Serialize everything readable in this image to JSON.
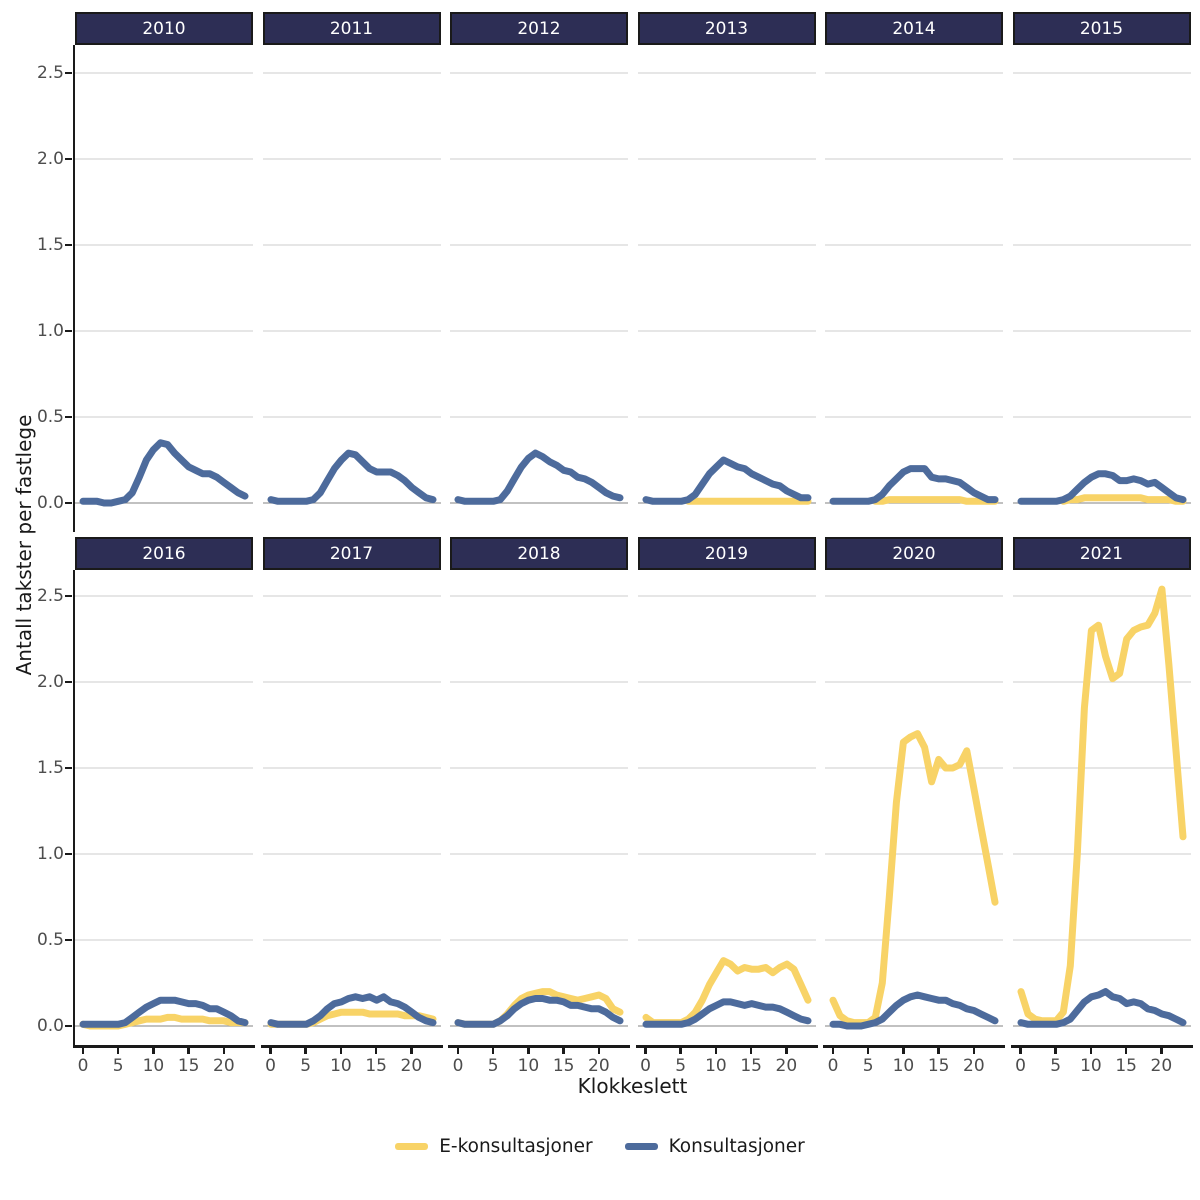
{
  "axes": {
    "y_title": "Antall takster per fastlege",
    "x_title": "Klokkeslett",
    "y_ticks": [
      "2.5",
      "2.0",
      "1.5",
      "1.0",
      "0.5",
      "0.0"
    ],
    "x_ticks": [
      "0",
      "5",
      "10",
      "15",
      "20"
    ],
    "x_tick_values": [
      0,
      5,
      10,
      15,
      20
    ]
  },
  "legend": {
    "items": [
      {
        "label": "E-konsultasjoner",
        "key": "e_konsultasjoner"
      },
      {
        "label": "Konsultasjoner",
        "key": "konsultasjoner"
      }
    ]
  },
  "colors": {
    "e_konsultasjoner": "#F8D367",
    "konsultasjoner": "#4D6B9C",
    "strip_bg": "#2D2E55",
    "strip_text": "#FFFFFF",
    "grid": "#D8D8D8",
    "grid_zero": "#9C9C9C",
    "axis_line": "#1A1A1A",
    "tick_text": "#4D4D4D"
  },
  "chart_data": {
    "type": "line",
    "x_label": "Klokkeslett",
    "y_label": "Antall takster per fastlege",
    "x": [
      0,
      1,
      2,
      3,
      4,
      5,
      6,
      7,
      8,
      9,
      10,
      11,
      12,
      13,
      14,
      15,
      16,
      17,
      18,
      19,
      20,
      21,
      22,
      23
    ],
    "ylim": [
      0,
      2.5
    ],
    "grid": "horizontal-only",
    "legend_position": "bottom",
    "facet_layout": {
      "rows": 2,
      "cols": 6
    },
    "facets": [
      {
        "year": "2010",
        "series": [
          {
            "name": "Konsultasjoner",
            "key": "konsultasjoner",
            "values": [
              0.01,
              0.01,
              0.01,
              0.0,
              0.0,
              0.01,
              0.02,
              0.06,
              0.15,
              0.25,
              0.31,
              0.35,
              0.34,
              0.29,
              0.25,
              0.21,
              0.19,
              0.17,
              0.17,
              0.15,
              0.12,
              0.09,
              0.06,
              0.04
            ]
          }
        ]
      },
      {
        "year": "2011",
        "series": [
          {
            "name": "Konsultasjoner",
            "key": "konsultasjoner",
            "values": [
              0.02,
              0.01,
              0.01,
              0.01,
              0.01,
              0.01,
              0.02,
              0.06,
              0.13,
              0.2,
              0.25,
              0.29,
              0.28,
              0.24,
              0.2,
              0.18,
              0.18,
              0.18,
              0.16,
              0.13,
              0.09,
              0.06,
              0.03,
              0.02
            ]
          }
        ]
      },
      {
        "year": "2012",
        "series": [
          {
            "name": "Konsultasjoner",
            "key": "konsultasjoner",
            "values": [
              0.02,
              0.01,
              0.01,
              0.01,
              0.01,
              0.01,
              0.02,
              0.07,
              0.14,
              0.21,
              0.26,
              0.29,
              0.27,
              0.24,
              0.22,
              0.19,
              0.18,
              0.15,
              0.14,
              0.12,
              0.09,
              0.06,
              0.04,
              0.03
            ]
          }
        ]
      },
      {
        "year": "2013",
        "series": [
          {
            "name": "E-konsultasjoner",
            "key": "e_konsultasjoner",
            "values": [
              null,
              null,
              null,
              null,
              null,
              null,
              0.01,
              0.01,
              0.01,
              0.01,
              0.01,
              0.01,
              0.01,
              0.01,
              0.01,
              0.01,
              0.01,
              0.01,
              0.01,
              0.01,
              0.01,
              0.01,
              0.01,
              0.01
            ]
          },
          {
            "name": "Konsultasjoner",
            "key": "konsultasjoner",
            "values": [
              0.02,
              0.01,
              0.01,
              0.01,
              0.01,
              0.01,
              0.02,
              0.05,
              0.11,
              0.17,
              0.21,
              0.25,
              0.23,
              0.21,
              0.2,
              0.17,
              0.15,
              0.13,
              0.11,
              0.1,
              0.07,
              0.05,
              0.03,
              0.03
            ]
          }
        ]
      },
      {
        "year": "2014",
        "series": [
          {
            "name": "E-konsultasjoner",
            "key": "e_konsultasjoner",
            "values": [
              null,
              null,
              null,
              null,
              null,
              null,
              0.01,
              0.01,
              0.02,
              0.02,
              0.02,
              0.02,
              0.02,
              0.02,
              0.02,
              0.02,
              0.02,
              0.02,
              0.02,
              0.01,
              0.01,
              0.01,
              0.01,
              0.01
            ]
          },
          {
            "name": "Konsultasjoner",
            "key": "konsultasjoner",
            "values": [
              0.01,
              0.01,
              0.01,
              0.01,
              0.01,
              0.01,
              0.02,
              0.05,
              0.1,
              0.14,
              0.18,
              0.2,
              0.2,
              0.2,
              0.15,
              0.14,
              0.14,
              0.13,
              0.12,
              0.09,
              0.06,
              0.04,
              0.02,
              0.02
            ]
          }
        ]
      },
      {
        "year": "2015",
        "series": [
          {
            "name": "E-konsultasjoner",
            "key": "e_konsultasjoner",
            "values": [
              null,
              null,
              null,
              null,
              null,
              null,
              0.01,
              0.02,
              0.02,
              0.03,
              0.03,
              0.03,
              0.03,
              0.03,
              0.03,
              0.03,
              0.03,
              0.03,
              0.02,
              0.02,
              0.02,
              0.02,
              0.01,
              0.01
            ]
          },
          {
            "name": "Konsultasjoner",
            "key": "konsultasjoner",
            "values": [
              0.01,
              0.01,
              0.01,
              0.01,
              0.01,
              0.01,
              0.02,
              0.04,
              0.08,
              0.12,
              0.15,
              0.17,
              0.17,
              0.16,
              0.13,
              0.13,
              0.14,
              0.13,
              0.11,
              0.12,
              0.09,
              0.06,
              0.03,
              0.02
            ]
          }
        ]
      },
      {
        "year": "2016",
        "series": [
          {
            "name": "E-konsultasjoner",
            "key": "e_konsultasjoner",
            "values": [
              0.01,
              0.0,
              0.0,
              0.0,
              0.0,
              0.0,
              0.01,
              0.02,
              0.03,
              0.04,
              0.04,
              0.04,
              0.05,
              0.05,
              0.04,
              0.04,
              0.04,
              0.04,
              0.03,
              0.03,
              0.03,
              0.02,
              0.02,
              0.02
            ]
          },
          {
            "name": "Konsultasjoner",
            "key": "konsultasjoner",
            "values": [
              0.01,
              0.01,
              0.01,
              0.01,
              0.01,
              0.01,
              0.02,
              0.05,
              0.08,
              0.11,
              0.13,
              0.15,
              0.15,
              0.15,
              0.14,
              0.13,
              0.13,
              0.12,
              0.1,
              0.1,
              0.08,
              0.06,
              0.03,
              0.02
            ]
          }
        ]
      },
      {
        "year": "2017",
        "series": [
          {
            "name": "E-konsultasjoner",
            "key": "e_konsultasjoner",
            "values": [
              0.01,
              0.01,
              0.01,
              0.01,
              0.01,
              0.01,
              0.02,
              0.04,
              0.06,
              0.07,
              0.08,
              0.08,
              0.08,
              0.08,
              0.07,
              0.07,
              0.07,
              0.07,
              0.07,
              0.06,
              0.06,
              0.06,
              0.05,
              0.04
            ]
          },
          {
            "name": "Konsultasjoner",
            "key": "konsultasjoner",
            "values": [
              0.02,
              0.01,
              0.01,
              0.01,
              0.01,
              0.01,
              0.03,
              0.06,
              0.1,
              0.13,
              0.14,
              0.16,
              0.17,
              0.16,
              0.17,
              0.15,
              0.17,
              0.14,
              0.13,
              0.11,
              0.08,
              0.05,
              0.03,
              0.02
            ]
          }
        ]
      },
      {
        "year": "2018",
        "series": [
          {
            "name": "E-konsultasjoner",
            "key": "e_konsultasjoner",
            "values": [
              0.02,
              0.01,
              0.01,
              0.01,
              0.01,
              0.01,
              0.03,
              0.07,
              0.12,
              0.16,
              0.18,
              0.19,
              0.2,
              0.2,
              0.18,
              0.17,
              0.16,
              0.15,
              0.16,
              0.17,
              0.18,
              0.16,
              0.1,
              0.08
            ]
          },
          {
            "name": "Konsultasjoner",
            "key": "konsultasjoner",
            "values": [
              0.02,
              0.01,
              0.01,
              0.01,
              0.01,
              0.01,
              0.03,
              0.06,
              0.1,
              0.13,
              0.15,
              0.16,
              0.16,
              0.15,
              0.15,
              0.14,
              0.12,
              0.12,
              0.11,
              0.1,
              0.1,
              0.08,
              0.05,
              0.03
            ]
          }
        ]
      },
      {
        "year": "2019",
        "series": [
          {
            "name": "E-konsultasjoner",
            "key": "e_konsultasjoner",
            "values": [
              0.05,
              0.02,
              0.02,
              0.02,
              0.02,
              0.02,
              0.04,
              0.08,
              0.15,
              0.24,
              0.31,
              0.38,
              0.36,
              0.32,
              0.34,
              0.33,
              0.33,
              0.34,
              0.31,
              0.34,
              0.36,
              0.33,
              0.24,
              0.15
            ]
          },
          {
            "name": "Konsultasjoner",
            "key": "konsultasjoner",
            "values": [
              0.01,
              0.01,
              0.01,
              0.01,
              0.01,
              0.01,
              0.02,
              0.04,
              0.07,
              0.1,
              0.12,
              0.14,
              0.14,
              0.13,
              0.12,
              0.13,
              0.12,
              0.11,
              0.11,
              0.1,
              0.08,
              0.06,
              0.04,
              0.03
            ]
          }
        ]
      },
      {
        "year": "2020",
        "series": [
          {
            "name": "E-konsultasjoner",
            "key": "e_konsultasjoner",
            "values": [
              0.15,
              0.06,
              0.03,
              0.02,
              0.02,
              0.02,
              0.05,
              0.25,
              0.75,
              1.3,
              1.65,
              1.68,
              1.7,
              1.62,
              1.42,
              1.55,
              1.5,
              1.5,
              1.52,
              1.6,
              1.38,
              1.16,
              0.94,
              0.72
            ]
          },
          {
            "name": "Konsultasjoner",
            "key": "konsultasjoner",
            "values": [
              0.01,
              0.01,
              0.0,
              0.0,
              0.0,
              0.01,
              0.02,
              0.04,
              0.08,
              0.12,
              0.15,
              0.17,
              0.18,
              0.17,
              0.16,
              0.15,
              0.15,
              0.13,
              0.12,
              0.1,
              0.09,
              0.07,
              0.05,
              0.03
            ]
          }
        ]
      },
      {
        "year": "2021",
        "series": [
          {
            "name": "E-konsultasjoner",
            "key": "e_konsultasjoner",
            "values": [
              0.2,
              0.07,
              0.04,
              0.03,
              0.03,
              0.03,
              0.08,
              0.35,
              1.0,
              1.85,
              2.3,
              2.33,
              2.15,
              2.02,
              2.05,
              2.25,
              2.3,
              2.32,
              2.33,
              2.4,
              2.54,
              2.1,
              1.6,
              1.1
            ]
          },
          {
            "name": "Konsultasjoner",
            "key": "konsultasjoner",
            "values": [
              0.02,
              0.01,
              0.01,
              0.01,
              0.01,
              0.01,
              0.02,
              0.04,
              0.09,
              0.14,
              0.17,
              0.18,
              0.2,
              0.17,
              0.16,
              0.13,
              0.14,
              0.13,
              0.1,
              0.09,
              0.07,
              0.06,
              0.04,
              0.02
            ]
          }
        ]
      }
    ]
  }
}
